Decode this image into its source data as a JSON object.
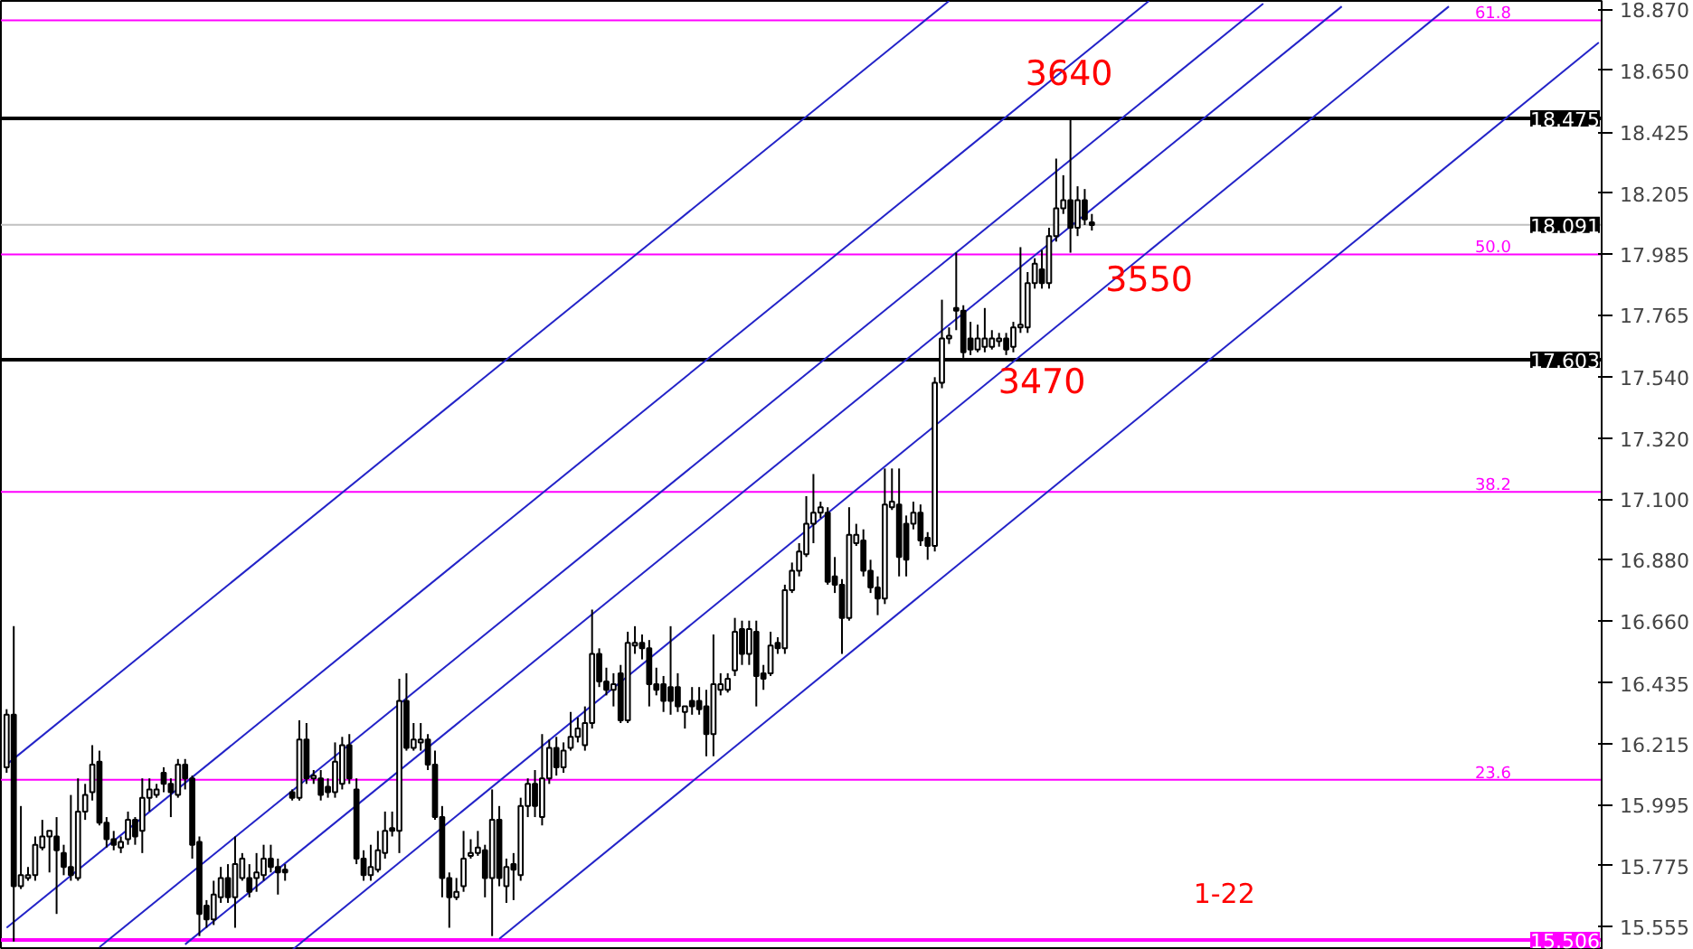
{
  "chart_data": {
    "type": "candlestick",
    "categories": [
      null,
      null,
      null,
      null,
      null,
      null,
      null,
      null,
      null,
      null,
      null,
      null,
      null,
      null,
      null,
      null,
      null,
      null,
      null,
      null,
      null,
      null,
      null,
      null,
      null,
      null,
      null,
      null,
      null,
      null,
      null,
      null,
      null,
      null,
      null,
      null,
      null,
      null,
      null,
      null,
      null,
      null,
      null,
      null,
      null,
      null,
      null,
      null,
      null,
      null,
      null,
      null,
      null,
      null,
      null,
      null,
      null,
      null,
      null,
      null,
      null,
      null,
      null,
      null,
      null,
      null,
      null,
      null,
      null,
      null,
      null,
      null,
      null,
      null,
      null,
      null,
      null,
      null,
      null,
      null,
      null,
      null,
      null,
      null,
      null,
      null,
      null,
      null,
      null,
      null,
      null,
      null,
      null,
      null,
      null,
      null,
      null,
      null,
      null,
      null,
      null,
      null,
      null,
      null,
      null,
      null,
      null,
      null,
      null,
      null,
      null,
      null,
      null,
      null,
      null,
      null,
      null,
      null,
      null,
      null,
      null,
      null,
      null,
      null,
      null,
      null,
      null,
      null,
      null,
      null,
      null,
      null,
      null,
      null,
      null,
      null,
      null,
      null,
      null,
      null,
      null,
      null,
      null,
      null,
      null,
      null,
      null,
      null,
      null,
      null,
      null,
      null,
      null,
      null,
      null,
      null,
      null,
      null,
      null,
      null,
      null,
      null,
      null,
      null,
      null,
      null,
      null,
      null,
      null,
      null,
      null,
      null,
      null,
      null,
      null,
      null,
      null,
      null,
      null,
      null,
      null,
      null,
      null,
      null,
      null,
      null,
      null,
      null,
      null,
      null,
      null,
      null,
      null,
      null,
      null,
      null,
      null,
      null,
      null,
      null,
      null,
      null,
      null,
      null,
      null,
      null,
      null,
      null,
      null,
      null,
      null,
      null,
      null,
      null,
      null,
      null,
      null,
      null,
      null,
      null,
      null,
      null,
      null,
      null
    ],
    "ohlc": [
      [
        16.13,
        16.34,
        16.11,
        16.32
      ],
      [
        16.32,
        16.64,
        15.5,
        15.7
      ],
      [
        15.7,
        15.99,
        15.69,
        15.74
      ],
      [
        15.73,
        15.77,
        15.72,
        15.74
      ],
      [
        15.74,
        15.88,
        15.72,
        15.85
      ],
      [
        15.84,
        15.94,
        15.83,
        15.88
      ],
      [
        15.88,
        15.9,
        15.75,
        15.9
      ],
      [
        15.88,
        15.95,
        15.6,
        15.83
      ],
      [
        15.82,
        15.85,
        15.74,
        15.77
      ],
      [
        15.77,
        16.03,
        15.72,
        15.74
      ],
      [
        15.73,
        16.09,
        15.72,
        15.97
      ],
      [
        15.97,
        16.07,
        15.94,
        16.03
      ],
      [
        16.04,
        16.21,
        16.01,
        16.14
      ],
      [
        16.15,
        16.19,
        15.92,
        15.93
      ],
      [
        15.93,
        15.95,
        15.84,
        15.87
      ],
      [
        15.87,
        15.9,
        15.83,
        15.85
      ],
      [
        15.84,
        15.88,
        15.82,
        15.86
      ],
      [
        15.87,
        15.97,
        15.85,
        15.94
      ],
      [
        15.94,
        15.95,
        15.85,
        15.88
      ],
      [
        15.9,
        16.09,
        15.82,
        16.02
      ],
      [
        16.02,
        16.09,
        15.97,
        16.05
      ],
      [
        16.03,
        16.07,
        16.02,
        16.05
      ],
      [
        16.11,
        16.13,
        16.04,
        16.07
      ],
      [
        16.07,
        16.09,
        15.95,
        16.04
      ],
      [
        16.03,
        16.16,
        16.02,
        16.14
      ],
      [
        16.14,
        16.16,
        16.05,
        16.09
      ],
      [
        16.09,
        16.1,
        15.8,
        15.85
      ],
      [
        15.86,
        15.88,
        15.52,
        15.6
      ],
      [
        15.63,
        15.65,
        15.55,
        15.58
      ],
      [
        15.58,
        15.72,
        15.56,
        15.67
      ],
      [
        15.66,
        15.77,
        15.64,
        15.73
      ],
      [
        15.73,
        15.78,
        15.64,
        15.66
      ],
      [
        15.66,
        15.88,
        15.55,
        15.78
      ],
      [
        15.73,
        15.82,
        15.72,
        15.8
      ],
      [
        15.73,
        15.78,
        15.66,
        15.68
      ],
      [
        15.73,
        15.82,
        15.68,
        15.75
      ],
      [
        15.74,
        15.85,
        15.72,
        15.8
      ],
      [
        15.8,
        15.85,
        15.75,
        15.77
      ],
      [
        15.77,
        15.8,
        15.67,
        15.75
      ],
      [
        15.76,
        15.78,
        15.72,
        15.75
      ],
      [
        16.04,
        16.05,
        16.01,
        16.02
      ],
      [
        16.02,
        16.3,
        16.01,
        16.23
      ],
      [
        16.23,
        16.29,
        16.07,
        16.09
      ],
      [
        16.09,
        16.12,
        16.07,
        16.1
      ],
      [
        16.09,
        16.12,
        16.01,
        16.03
      ],
      [
        16.06,
        16.09,
        16.02,
        16.04
      ],
      [
        16.04,
        16.22,
        16.02,
        16.15
      ],
      [
        16.07,
        16.24,
        16.05,
        16.21
      ],
      [
        16.21,
        16.25,
        16.07,
        16.09
      ],
      [
        16.05,
        16.09,
        15.78,
        15.8
      ],
      [
        15.8,
        15.83,
        15.72,
        15.74
      ],
      [
        15.74,
        15.85,
        15.72,
        15.77
      ],
      [
        15.76,
        15.9,
        15.75,
        15.83
      ],
      [
        15.82,
        15.97,
        15.8,
        15.9
      ],
      [
        15.91,
        15.97,
        15.88,
        15.9
      ],
      [
        15.9,
        16.45,
        15.82,
        16.37
      ],
      [
        16.37,
        16.47,
        16.19,
        16.2
      ],
      [
        16.2,
        16.29,
        16.19,
        16.23
      ],
      [
        16.22,
        16.29,
        16.19,
        16.23
      ],
      [
        16.23,
        16.25,
        16.12,
        16.14
      ],
      [
        16.14,
        16.19,
        15.94,
        15.95
      ],
      [
        15.95,
        15.99,
        15.66,
        15.73
      ],
      [
        15.73,
        15.75,
        15.55,
        15.66
      ],
      [
        15.66,
        15.73,
        15.65,
        15.68
      ],
      [
        15.7,
        15.9,
        15.68,
        15.8
      ],
      [
        15.81,
        15.87,
        15.8,
        15.82
      ],
      [
        15.82,
        15.9,
        15.81,
        15.84
      ],
      [
        15.83,
        15.85,
        15.66,
        15.73
      ],
      [
        15.73,
        16.05,
        15.52,
        15.94
      ],
      [
        15.94,
        15.99,
        15.7,
        15.73
      ],
      [
        15.7,
        15.8,
        15.64,
        15.77
      ],
      [
        15.78,
        15.82,
        15.65,
        15.76
      ],
      [
        15.74,
        16.02,
        15.72,
        15.99
      ],
      [
        15.99,
        16.09,
        15.95,
        16.07
      ],
      [
        16.07,
        16.12,
        15.95,
        15.99
      ],
      [
        15.95,
        16.25,
        15.92,
        16.09
      ],
      [
        16.09,
        16.23,
        16.07,
        16.2
      ],
      [
        16.2,
        16.24,
        16.1,
        16.13
      ],
      [
        16.13,
        16.22,
        16.11,
        16.19
      ],
      [
        16.2,
        16.33,
        16.19,
        16.24
      ],
      [
        16.24,
        16.31,
        16.22,
        16.27
      ],
      [
        16.21,
        16.35,
        16.19,
        16.29
      ],
      [
        16.29,
        16.7,
        16.27,
        16.54
      ],
      [
        16.54,
        16.56,
        16.42,
        16.44
      ],
      [
        16.44,
        16.49,
        16.39,
        16.41
      ],
      [
        16.41,
        16.47,
        16.35,
        16.43
      ],
      [
        16.47,
        16.5,
        16.29,
        16.3
      ],
      [
        16.3,
        16.62,
        16.29,
        16.58
      ],
      [
        16.57,
        16.64,
        16.54,
        16.58
      ],
      [
        16.58,
        16.61,
        16.52,
        16.56
      ],
      [
        16.56,
        16.59,
        16.35,
        16.43
      ],
      [
        16.43,
        16.49,
        16.39,
        16.41
      ],
      [
        16.43,
        16.46,
        16.33,
        16.37
      ],
      [
        16.42,
        16.64,
        16.32,
        16.37
      ],
      [
        16.42,
        16.47,
        16.33,
        16.35
      ],
      [
        16.33,
        16.35,
        16.27,
        16.35
      ],
      [
        16.37,
        16.42,
        16.32,
        16.35
      ],
      [
        16.37,
        16.42,
        16.32,
        16.34
      ],
      [
        16.35,
        16.41,
        16.17,
        16.25
      ],
      [
        16.25,
        16.61,
        16.17,
        16.43
      ],
      [
        16.41,
        16.47,
        16.39,
        16.43
      ],
      [
        16.41,
        16.47,
        16.4,
        16.45
      ],
      [
        16.48,
        16.67,
        16.46,
        16.62
      ],
      [
        16.63,
        16.66,
        16.5,
        16.54
      ],
      [
        16.54,
        16.66,
        16.5,
        16.63
      ],
      [
        16.62,
        16.66,
        16.35,
        16.46
      ],
      [
        16.47,
        16.5,
        16.41,
        16.45
      ],
      [
        16.47,
        16.62,
        16.46,
        16.57
      ],
      [
        16.58,
        16.6,
        16.54,
        16.56
      ],
      [
        16.56,
        16.79,
        16.54,
        16.77
      ],
      [
        16.77,
        16.87,
        16.76,
        16.84
      ],
      [
        16.84,
        16.94,
        16.82,
        16.91
      ],
      [
        16.9,
        17.11,
        16.89,
        17.01
      ],
      [
        17.01,
        17.19,
        16.94,
        17.05
      ],
      [
        17.05,
        17.09,
        17.03,
        17.07
      ],
      [
        17.05,
        17.07,
        16.79,
        16.8
      ],
      [
        16.82,
        16.89,
        16.76,
        16.79
      ],
      [
        16.79,
        16.81,
        16.54,
        16.67
      ],
      [
        16.67,
        17.07,
        16.66,
        16.97
      ],
      [
        16.94,
        17.01,
        16.93,
        16.97
      ],
      [
        16.95,
        16.99,
        16.82,
        16.84
      ],
      [
        16.84,
        16.88,
        16.76,
        16.78
      ],
      [
        16.78,
        16.82,
        16.68,
        16.74
      ],
      [
        16.74,
        17.21,
        16.72,
        17.08
      ],
      [
        17.07,
        17.21,
        17.06,
        17.09
      ],
      [
        17.08,
        17.21,
        16.82,
        16.89
      ],
      [
        17.01,
        17.04,
        16.82,
        16.88
      ],
      [
        17.01,
        17.09,
        16.99,
        17.05
      ],
      [
        17.05,
        17.08,
        16.93,
        16.95
      ],
      [
        16.96,
        16.98,
        16.88,
        16.93
      ],
      [
        16.93,
        17.54,
        16.91,
        17.52
      ],
      [
        17.52,
        17.82,
        17.5,
        17.68
      ],
      [
        17.68,
        17.72,
        17.66,
        17.69
      ],
      [
        17.79,
        17.99,
        17.71,
        17.78
      ],
      [
        17.78,
        17.8,
        17.61,
        17.63
      ],
      [
        17.68,
        17.74,
        17.62,
        17.64
      ],
      [
        17.64,
        17.73,
        17.63,
        17.68
      ],
      [
        17.65,
        17.79,
        17.63,
        17.68
      ],
      [
        17.65,
        17.71,
        17.64,
        17.68
      ],
      [
        17.67,
        17.7,
        17.65,
        17.68
      ],
      [
        17.68,
        17.7,
        17.62,
        17.64
      ],
      [
        17.65,
        17.74,
        17.63,
        17.72
      ],
      [
        17.72,
        18.01,
        17.7,
        17.73
      ],
      [
        17.72,
        17.92,
        17.7,
        17.88
      ],
      [
        17.88,
        17.97,
        17.86,
        17.95
      ],
      [
        17.93,
        18.0,
        17.86,
        17.88
      ],
      [
        17.88,
        18.08,
        17.86,
        18.05
      ],
      [
        18.05,
        18.33,
        18.03,
        18.15
      ],
      [
        18.15,
        18.27,
        18.13,
        18.18
      ],
      [
        18.18,
        18.47,
        17.99,
        18.08
      ],
      [
        18.08,
        18.23,
        18.05,
        18.18
      ],
      [
        18.18,
        18.22,
        18.09,
        18.11
      ],
      [
        18.1,
        18.13,
        18.07,
        18.09
      ],
      null,
      null,
      null,
      null,
      null,
      null,
      null,
      null,
      null,
      null,
      null,
      null,
      null,
      null,
      null,
      null,
      null,
      null,
      null,
      null,
      null,
      null,
      null,
      null,
      null,
      null,
      null,
      null,
      null,
      null,
      null,
      null,
      null,
      null,
      null,
      null,
      null,
      null,
      null,
      null,
      null,
      null,
      null,
      null,
      null,
      null,
      null,
      null,
      null,
      null,
      null,
      null,
      null,
      null,
      null,
      null,
      null,
      null,
      null,
      null,
      null,
      null,
      null,
      null,
      null,
      null,
      null,
      null,
      null,
      null,
      null
    ],
    "series": [
      {
        "type": "line",
        "color": "#2323c8",
        "values": [
          16.14,
          null,
          null,
          null,
          null,
          null,
          null,
          null,
          null,
          null,
          null,
          null,
          null,
          null,
          null,
          null,
          null,
          null,
          null,
          null,
          null,
          null,
          null,
          null,
          null,
          null,
          null,
          null,
          null,
          null,
          null,
          null,
          null,
          null,
          null,
          null,
          null,
          null,
          null,
          null,
          null,
          null,
          null,
          null,
          null,
          null,
          null,
          null,
          null,
          null,
          null,
          null,
          null,
          null,
          null,
          null,
          null,
          null,
          null,
          null,
          null,
          null,
          null,
          null,
          null,
          null,
          null,
          null,
          null,
          null,
          null,
          null,
          null,
          null,
          null,
          null,
          null,
          null,
          null,
          null,
          null,
          null,
          null,
          null,
          null,
          null,
          null,
          null,
          null,
          null,
          null,
          null,
          null,
          null,
          null,
          null,
          null,
          null,
          null,
          null,
          null,
          null,
          null,
          null,
          null,
          null,
          null,
          null,
          null,
          null,
          null,
          null,
          null,
          null,
          null,
          null,
          null,
          null,
          null,
          null,
          null,
          null,
          null,
          null,
          null,
          null,
          null,
          null,
          null,
          null,
          null,
          null,
          18.9,
          null,
          null,
          null,
          null,
          null,
          null,
          null,
          null,
          null,
          null,
          null,
          null,
          null,
          null,
          null,
          null,
          null,
          null,
          null,
          null,
          null,
          null,
          null,
          null,
          null,
          null,
          null,
          null,
          null,
          null,
          null,
          null,
          null,
          null,
          null,
          null,
          null,
          null,
          null,
          null,
          null,
          null,
          null,
          null,
          null,
          null,
          null,
          null,
          null,
          null,
          null,
          null,
          null,
          null,
          null,
          null,
          null,
          null,
          null,
          null,
          null,
          null,
          null,
          null,
          null,
          null,
          null,
          null,
          null,
          null,
          null,
          null,
          null,
          null,
          null,
          null,
          null,
          null,
          null,
          null,
          null,
          null,
          null,
          null,
          null,
          null,
          null,
          null,
          null,
          null,
          null
        ]
      },
      {
        "type": "line",
        "color": "#2323c8",
        "values": [
          15.55,
          null,
          null,
          null,
          null,
          null,
          null,
          null,
          null,
          null,
          null,
          null,
          null,
          null,
          null,
          null,
          null,
          null,
          null,
          null,
          null,
          null,
          null,
          null,
          null,
          null,
          null,
          null,
          null,
          null,
          null,
          null,
          null,
          null,
          null,
          null,
          null,
          null,
          null,
          null,
          null,
          null,
          null,
          null,
          null,
          null,
          null,
          null,
          null,
          null,
          null,
          null,
          null,
          null,
          null,
          null,
          null,
          null,
          null,
          null,
          null,
          null,
          null,
          null,
          null,
          null,
          null,
          null,
          null,
          null,
          null,
          null,
          null,
          null,
          null,
          null,
          null,
          null,
          null,
          null,
          null,
          null,
          null,
          null,
          null,
          null,
          null,
          null,
          null,
          null,
          null,
          null,
          null,
          null,
          null,
          null,
          null,
          null,
          null,
          null,
          null,
          null,
          null,
          null,
          null,
          null,
          null,
          null,
          null,
          null,
          null,
          null,
          null,
          null,
          null,
          null,
          null,
          null,
          null,
          null,
          null,
          null,
          null,
          null,
          null,
          null,
          null,
          null,
          null,
          null,
          null,
          null,
          null,
          null,
          null,
          null,
          null,
          null,
          null,
          null,
          null,
          null,
          null,
          null,
          null,
          null,
          null,
          null,
          null,
          null,
          null,
          null,
          null,
          null,
          null,
          null,
          null,
          null,
          null,
          null,
          18.9,
          null,
          null,
          null,
          null,
          null,
          null,
          null,
          null,
          null,
          null,
          null,
          null,
          null,
          null,
          null,
          null,
          null,
          null,
          null,
          null,
          null,
          null,
          null,
          null,
          null,
          null,
          null,
          null,
          null,
          null,
          null,
          null,
          null,
          null,
          null,
          null,
          null,
          null,
          null,
          null,
          null,
          null,
          null,
          null,
          null,
          null,
          null,
          null,
          null,
          null,
          null,
          null,
          null,
          null,
          null,
          null,
          null,
          null,
          null,
          null,
          null,
          null,
          null
        ]
      },
      {
        "type": "line",
        "color": "#2323c8",
        "values": [
          null,
          null,
          null,
          null,
          null,
          null,
          null,
          null,
          null,
          null,
          null,
          null,
          null,
          15.48,
          null,
          null,
          null,
          null,
          null,
          null,
          null,
          null,
          null,
          null,
          null,
          null,
          null,
          null,
          null,
          null,
          null,
          null,
          null,
          null,
          null,
          null,
          null,
          null,
          null,
          null,
          null,
          null,
          null,
          null,
          null,
          null,
          null,
          null,
          null,
          null,
          null,
          null,
          null,
          null,
          null,
          null,
          null,
          null,
          null,
          null,
          null,
          null,
          null,
          null,
          null,
          null,
          null,
          null,
          null,
          null,
          null,
          null,
          null,
          null,
          null,
          null,
          null,
          null,
          null,
          null,
          null,
          null,
          null,
          null,
          null,
          null,
          null,
          null,
          null,
          null,
          null,
          null,
          null,
          null,
          null,
          null,
          null,
          null,
          null,
          null,
          null,
          null,
          null,
          null,
          null,
          null,
          null,
          null,
          null,
          null,
          null,
          null,
          null,
          null,
          null,
          null,
          null,
          null,
          null,
          null,
          null,
          null,
          null,
          null,
          null,
          null,
          null,
          null,
          null,
          null,
          null,
          null,
          null,
          null,
          null,
          null,
          null,
          null,
          null,
          null,
          null,
          null,
          null,
          null,
          null,
          null,
          null,
          null,
          null,
          null,
          null,
          null,
          null,
          null,
          null,
          null,
          null,
          null,
          null,
          null,
          null,
          null,
          null,
          null,
          null,
          null,
          null,
          null,
          null,
          null,
          null,
          null,
          null,
          null,
          null,
          null,
          18.89,
          null,
          null,
          null,
          null,
          null,
          null,
          null,
          null,
          null,
          null,
          null,
          null,
          null,
          null,
          null,
          null,
          null,
          null,
          null,
          null,
          null,
          null,
          null,
          null,
          null,
          null,
          null,
          null,
          null,
          null,
          null,
          null,
          null,
          null,
          null,
          null,
          null,
          null,
          null,
          null,
          null,
          null,
          null,
          null,
          null,
          null,
          null
        ]
      },
      {
        "type": "line",
        "color": "#2323c8",
        "values": [
          null,
          null,
          null,
          null,
          null,
          null,
          null,
          null,
          null,
          null,
          null,
          null,
          null,
          null,
          null,
          null,
          null,
          null,
          null,
          null,
          null,
          null,
          null,
          null,
          null,
          15.49,
          null,
          null,
          null,
          null,
          null,
          null,
          null,
          null,
          null,
          null,
          null,
          null,
          null,
          null,
          null,
          null,
          null,
          null,
          null,
          null,
          null,
          null,
          null,
          null,
          null,
          null,
          null,
          null,
          null,
          null,
          null,
          null,
          null,
          null,
          null,
          null,
          null,
          null,
          null,
          null,
          null,
          null,
          null,
          null,
          null,
          null,
          null,
          null,
          null,
          null,
          null,
          null,
          null,
          null,
          null,
          null,
          null,
          null,
          null,
          null,
          null,
          null,
          null,
          null,
          null,
          null,
          null,
          null,
          null,
          null,
          null,
          null,
          null,
          null,
          null,
          null,
          null,
          null,
          null,
          null,
          null,
          null,
          null,
          null,
          null,
          null,
          null,
          null,
          null,
          null,
          null,
          null,
          null,
          null,
          null,
          null,
          null,
          null,
          null,
          null,
          null,
          null,
          null,
          null,
          null,
          null,
          null,
          null,
          null,
          null,
          null,
          null,
          null,
          null,
          null,
          null,
          null,
          null,
          null,
          null,
          null,
          null,
          null,
          null,
          null,
          null,
          null,
          null,
          null,
          null,
          null,
          null,
          null,
          null,
          null,
          null,
          null,
          null,
          null,
          null,
          null,
          null,
          null,
          null,
          null,
          null,
          null,
          null,
          null,
          null,
          null,
          null,
          null,
          null,
          null,
          null,
          null,
          null,
          null,
          null,
          null,
          18.88,
          null,
          null,
          null,
          null,
          null,
          null,
          null,
          null,
          null,
          null,
          null,
          null,
          null,
          null,
          null,
          null,
          null,
          null,
          null,
          null,
          null,
          null,
          null,
          null,
          null,
          null,
          null,
          null,
          null,
          null,
          null,
          null,
          null,
          null,
          null,
          null
        ]
      },
      {
        "type": "line",
        "color": "#2323c8",
        "values": [
          null,
          null,
          null,
          null,
          null,
          null,
          null,
          null,
          null,
          null,
          null,
          null,
          null,
          null,
          null,
          null,
          null,
          null,
          null,
          null,
          null,
          null,
          null,
          null,
          null,
          null,
          null,
          null,
          null,
          null,
          null,
          null,
          null,
          null,
          null,
          null,
          null,
          null,
          null,
          null,
          15.47,
          null,
          null,
          null,
          null,
          null,
          null,
          null,
          null,
          null,
          null,
          null,
          null,
          null,
          null,
          null,
          null,
          null,
          null,
          null,
          null,
          null,
          null,
          null,
          null,
          null,
          null,
          null,
          null,
          null,
          null,
          null,
          null,
          null,
          null,
          null,
          null,
          null,
          null,
          null,
          null,
          null,
          null,
          null,
          null,
          null,
          null,
          null,
          null,
          null,
          null,
          null,
          null,
          null,
          null,
          null,
          null,
          null,
          null,
          null,
          null,
          null,
          null,
          null,
          null,
          null,
          null,
          null,
          null,
          null,
          null,
          null,
          null,
          null,
          null,
          null,
          null,
          null,
          null,
          null,
          null,
          null,
          null,
          null,
          null,
          null,
          null,
          null,
          null,
          null,
          null,
          null,
          null,
          null,
          null,
          null,
          null,
          null,
          null,
          null,
          null,
          null,
          null,
          null,
          null,
          null,
          null,
          null,
          null,
          null,
          null,
          null,
          null,
          null,
          null,
          null,
          null,
          null,
          null,
          null,
          null,
          null,
          null,
          null,
          null,
          null,
          null,
          null,
          null,
          null,
          null,
          null,
          null,
          null,
          null,
          null,
          null,
          null,
          null,
          null,
          null,
          null,
          null,
          null,
          null,
          null,
          null,
          null,
          null,
          null,
          null,
          null,
          null,
          null,
          null,
          null,
          null,
          null,
          null,
          null,
          null,
          null,
          18.88,
          null,
          null,
          null,
          null,
          null,
          null,
          null,
          null,
          null,
          null,
          null,
          null,
          null,
          null,
          null,
          null,
          null,
          null,
          null,
          null,
          null
        ]
      },
      {
        "type": "line",
        "color": "#2323c8",
        "values": [
          null,
          null,
          null,
          null,
          null,
          null,
          null,
          null,
          null,
          null,
          null,
          null,
          null,
          null,
          null,
          null,
          null,
          null,
          null,
          null,
          null,
          null,
          null,
          null,
          null,
          null,
          null,
          null,
          null,
          null,
          null,
          null,
          null,
          null,
          null,
          null,
          null,
          null,
          null,
          null,
          null,
          null,
          null,
          null,
          null,
          null,
          null,
          null,
          null,
          null,
          null,
          null,
          null,
          null,
          null,
          null,
          null,
          null,
          null,
          null,
          null,
          null,
          null,
          null,
          null,
          null,
          null,
          null,
          null,
          15.51,
          null,
          null,
          null,
          null,
          null,
          null,
          null,
          null,
          null,
          null,
          null,
          null,
          null,
          null,
          null,
          null,
          null,
          null,
          null,
          null,
          null,
          null,
          null,
          null,
          null,
          null,
          null,
          null,
          null,
          null,
          null,
          null,
          null,
          null,
          null,
          null,
          null,
          null,
          null,
          null,
          null,
          null,
          null,
          null,
          null,
          null,
          null,
          null,
          null,
          null,
          null,
          null,
          null,
          null,
          null,
          null,
          null,
          null,
          null,
          null,
          null,
          null,
          null,
          null,
          null,
          null,
          null,
          null,
          null,
          null,
          null,
          null,
          null,
          null,
          null,
          null,
          null,
          null,
          null,
          null,
          null,
          null,
          null,
          null,
          null,
          null,
          null,
          null,
          null,
          null,
          null,
          null,
          null,
          null,
          null,
          null,
          null,
          null,
          null,
          null,
          null,
          null,
          null,
          null,
          null,
          null,
          null,
          null,
          null,
          null,
          null,
          null,
          null,
          null,
          null,
          null,
          null,
          null,
          null,
          null,
          null,
          null,
          null,
          null,
          null,
          null,
          null,
          null,
          null,
          null,
          null,
          null,
          null,
          null,
          null,
          null,
          null,
          null,
          null,
          null,
          null,
          null,
          null,
          null,
          null,
          null,
          null,
          null,
          null,
          null,
          null,
          null,
          null,
          18.75
        ]
      }
    ],
    "ylim": [
      15.47,
      18.9
    ],
    "yticks": [
      {
        "value": 18.87,
        "label": "18.870"
      },
      {
        "value": 18.65,
        "label": "18.650"
      },
      {
        "value": 18.425,
        "label": "18.425"
      },
      {
        "value": 18.205,
        "label": "18.205"
      },
      {
        "value": 17.985,
        "label": "17.985"
      },
      {
        "value": 17.765,
        "label": "17.765"
      },
      {
        "value": 17.54,
        "label": "17.540"
      },
      {
        "value": 17.32,
        "label": "17.320"
      },
      {
        "value": 17.1,
        "label": "17.100"
      },
      {
        "value": 16.88,
        "label": "16.880"
      },
      {
        "value": 16.66,
        "label": "16.660"
      },
      {
        "value": 16.435,
        "label": "16.435"
      },
      {
        "value": 16.215,
        "label": "16.215"
      },
      {
        "value": 15.995,
        "label": "15.995"
      },
      {
        "value": 15.775,
        "label": "15.775"
      },
      {
        "value": 15.555,
        "label": "15.555"
      }
    ],
    "tick_labels": "y",
    "ref_lines": [
      {
        "axis": "y",
        "value": 18.475,
        "label": "18.475",
        "color": "#000000"
      },
      {
        "axis": "y",
        "value": 17.603,
        "label": "17.603",
        "color": "#000000"
      },
      {
        "axis": "y",
        "value": 18.091,
        "label": "18.091",
        "color": "#c0c0c0"
      },
      {
        "axis": "y",
        "value": 15.506,
        "label": "15.506",
        "color": "#ff00ff"
      },
      {
        "axis": "y",
        "value": 18.83,
        "color": "#ff00ff"
      },
      {
        "axis": "y",
        "value": 17.984,
        "color": "#ff00ff"
      },
      {
        "axis": "y",
        "value": 17.125,
        "color": "#ff00ff"
      },
      {
        "axis": "y",
        "value": 16.085,
        "color": "#ff00ff"
      }
    ],
    "annotations": [
      "3640",
      "3550",
      "3470",
      "1-22",
      {
        "text": "61.8",
        "y": 18.83
      },
      {
        "text": "50.0",
        "y": 17.984
      },
      {
        "text": "38.2",
        "y": 17.125
      },
      {
        "text": "23.6",
        "y": 16.085
      }
    ],
    "grid": false
  }
}
